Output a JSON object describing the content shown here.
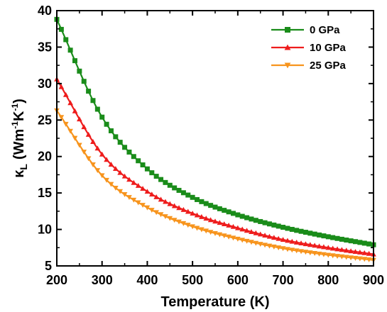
{
  "chart_data": {
    "type": "line",
    "xlabel": "Temperature (K)",
    "ylabel": {
      "kappa": "κ",
      "sub": "L",
      "open": "(Wm",
      "exp1": "-1",
      "mid": "K",
      "exp2": "-1",
      "close": ")"
    },
    "xlim": [
      200,
      900
    ],
    "ylim": [
      5,
      40
    ],
    "xticks": [
      200,
      300,
      400,
      500,
      600,
      700,
      800,
      900
    ],
    "yticks": [
      5,
      10,
      15,
      20,
      25,
      30,
      35,
      40
    ],
    "grid": false,
    "legend_position": "top-right",
    "x": [
      200,
      300,
      400,
      500,
      600,
      700,
      800,
      900
    ],
    "series": [
      {
        "name": "0 GPa",
        "color": "#1a8c1a",
        "marker": "square",
        "values": [
          38.8,
          25.4,
          18.3,
          14.4,
          12.0,
          10.3,
          9.0,
          7.9
        ]
      },
      {
        "name": "10 GPa",
        "color": "#ee1c1c",
        "marker": "triangle-up",
        "values": [
          30.6,
          20.3,
          15.2,
          12.2,
          10.2,
          8.6,
          7.5,
          6.6
        ]
      },
      {
        "name": "25 GPa",
        "color": "#f7941d",
        "marker": "triangle-down",
        "values": [
          26.3,
          17.4,
          13.0,
          10.4,
          8.7,
          7.4,
          6.5,
          5.8
        ]
      }
    ]
  }
}
